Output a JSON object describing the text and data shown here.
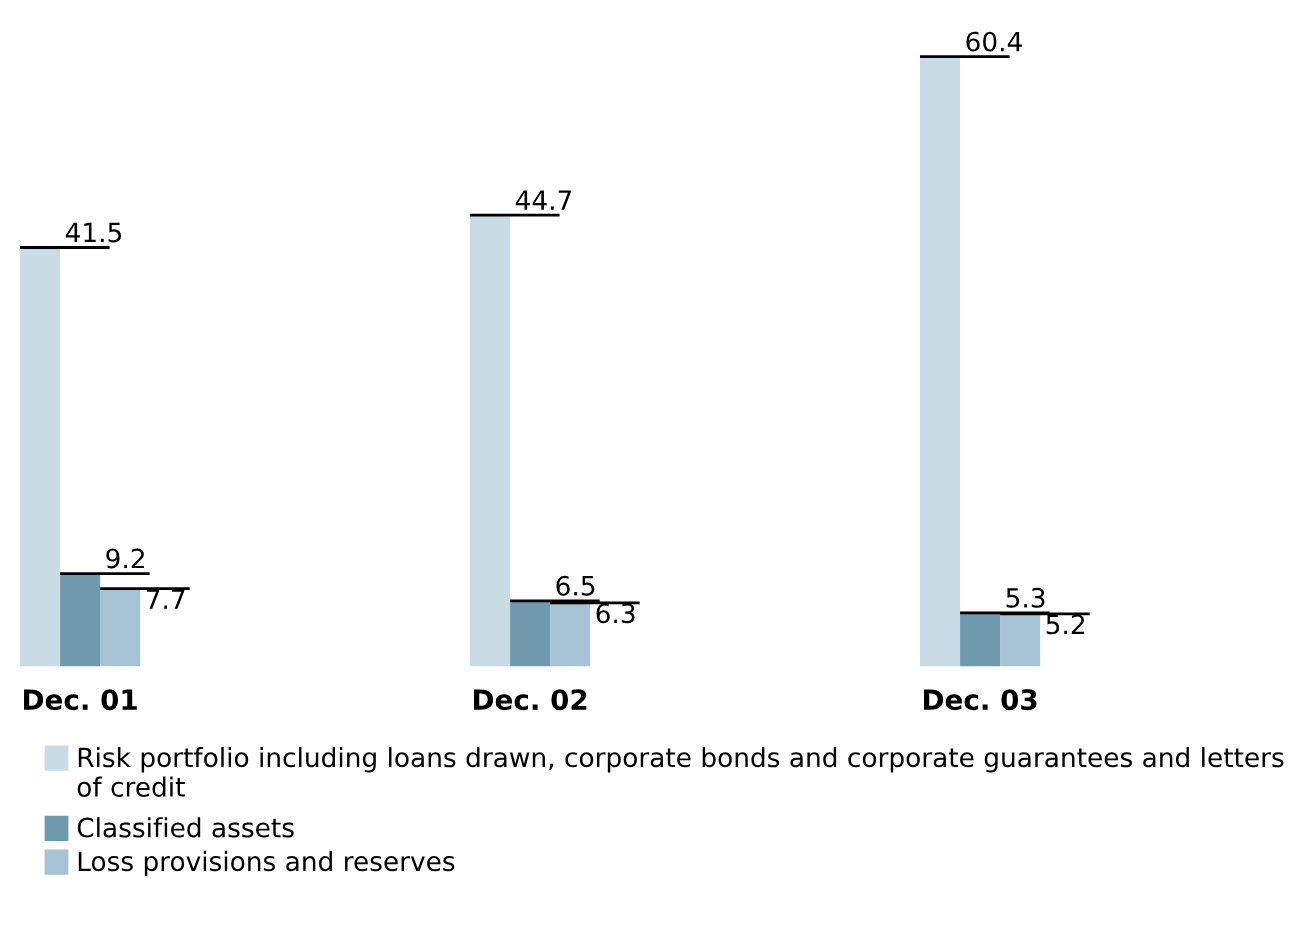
{
  "chart_data": {
    "type": "bar",
    "categories": [
      "Dec. 01",
      "Dec. 02",
      "Dec. 03"
    ],
    "series": [
      {
        "name": "Risk portfolio including loans drawn, corporate bonds and corporate guarantees and letters of credit",
        "color": "#c9dbe5",
        "values": [
          41.5,
          44.7,
          60.4
        ]
      },
      {
        "name": "Classified assets",
        "color": "#6f99ad",
        "values": [
          9.2,
          6.5,
          5.3
        ]
      },
      {
        "name": "Loss provisions and reserves",
        "color": "#a5c3d4",
        "values": [
          7.7,
          6.3,
          5.2
        ]
      }
    ],
    "data_labels": true,
    "legend": "bottom",
    "grid": false
  }
}
